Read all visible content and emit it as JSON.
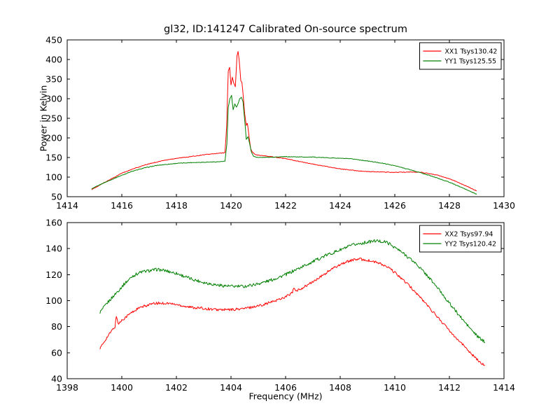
{
  "figure": {
    "title": "gl32, ID:141247 Calibrated On-source spectrum",
    "background": "#ffffff",
    "axis_color": "#000000"
  },
  "chart_data": [
    {
      "type": "line",
      "title": "gl32, ID:141247 Calibrated On-source spectrum",
      "xlabel": "",
      "ylabel": "Power in Kelvin",
      "xlim": [
        1414,
        1430
      ],
      "ylim": [
        50,
        450
      ],
      "xticks": [
        1414,
        1416,
        1418,
        1420,
        1422,
        1424,
        1426,
        1428,
        1430
      ],
      "yticks": [
        50,
        100,
        150,
        200,
        250,
        300,
        350,
        400,
        450
      ],
      "grid": false,
      "legend_position": "upper right",
      "series": [
        {
          "name": "XX1 Tsys130.42",
          "color": "#ff0000",
          "tsys": 130.42,
          "noise_k": 0.8,
          "points": [
            [
              1414.9,
              68
            ],
            [
              1415.2,
              80
            ],
            [
              1415.6,
              95
            ],
            [
              1416.0,
              110
            ],
            [
              1416.5,
              123
            ],
            [
              1417.0,
              134
            ],
            [
              1417.5,
              142
            ],
            [
              1418.0,
              148
            ],
            [
              1418.5,
              152
            ],
            [
              1419.0,
              157
            ],
            [
              1419.3,
              159
            ],
            [
              1419.6,
              161
            ],
            [
              1419.78,
              162
            ],
            [
              1419.84,
              230
            ],
            [
              1419.9,
              370
            ],
            [
              1419.95,
              380
            ],
            [
              1420.0,
              335
            ],
            [
              1420.05,
              355
            ],
            [
              1420.1,
              340
            ],
            [
              1420.16,
              330
            ],
            [
              1420.22,
              410
            ],
            [
              1420.26,
              420
            ],
            [
              1420.3,
              398
            ],
            [
              1420.36,
              345
            ],
            [
              1420.4,
              342
            ],
            [
              1420.46,
              298
            ],
            [
              1420.5,
              262
            ],
            [
              1420.56,
              232
            ],
            [
              1420.6,
              238
            ],
            [
              1420.66,
              205
            ],
            [
              1420.72,
              172
            ],
            [
              1420.8,
              162
            ],
            [
              1420.9,
              158
            ],
            [
              1421.0,
              156
            ],
            [
              1421.5,
              152
            ],
            [
              1422.0,
              147
            ],
            [
              1422.5,
              140
            ],
            [
              1423.0,
              133
            ],
            [
              1423.5,
              127
            ],
            [
              1424.0,
              121
            ],
            [
              1424.5,
              117
            ],
            [
              1425.0,
              114
            ],
            [
              1425.5,
              113
            ],
            [
              1426.0,
              112
            ],
            [
              1426.5,
              113
            ],
            [
              1427.0,
              112
            ],
            [
              1427.5,
              106
            ],
            [
              1428.0,
              96
            ],
            [
              1428.5,
              81
            ],
            [
              1429.0,
              65
            ]
          ]
        },
        {
          "name": "YY1 Tsys125.55",
          "color": "#008000",
          "tsys": 125.55,
          "noise_k": 0.8,
          "points": [
            [
              1414.9,
              70
            ],
            [
              1415.3,
              84
            ],
            [
              1415.8,
              99
            ],
            [
              1416.3,
              113
            ],
            [
              1416.8,
              123
            ],
            [
              1417.3,
              130
            ],
            [
              1418.0,
              135
            ],
            [
              1418.5,
              137
            ],
            [
              1419.0,
              138
            ],
            [
              1419.5,
              139
            ],
            [
              1419.78,
              140
            ],
            [
              1419.85,
              185
            ],
            [
              1419.9,
              278
            ],
            [
              1419.96,
              300
            ],
            [
              1420.02,
              308
            ],
            [
              1420.08,
              272
            ],
            [
              1420.14,
              286
            ],
            [
              1420.2,
              278
            ],
            [
              1420.26,
              288
            ],
            [
              1420.32,
              300
            ],
            [
              1420.38,
              304
            ],
            [
              1420.44,
              292
            ],
            [
              1420.5,
              246
            ],
            [
              1420.56,
              196
            ],
            [
              1420.62,
              204
            ],
            [
              1420.68,
              186
            ],
            [
              1420.74,
              166
            ],
            [
              1420.82,
              153
            ],
            [
              1421.0,
              150
            ],
            [
              1421.5,
              151
            ],
            [
              1422.0,
              152
            ],
            [
              1423.0,
              151
            ],
            [
              1424.0,
              148
            ],
            [
              1424.5,
              146
            ],
            [
              1425.0,
              141
            ],
            [
              1425.5,
              136
            ],
            [
              1426.0,
              129
            ],
            [
              1426.5,
              120
            ],
            [
              1427.0,
              110
            ],
            [
              1427.5,
              99
            ],
            [
              1428.0,
              87
            ],
            [
              1428.5,
              72
            ],
            [
              1429.0,
              56
            ]
          ]
        }
      ]
    },
    {
      "type": "line",
      "title": "",
      "xlabel": "Frequency (MHz)",
      "ylabel": "",
      "xlim": [
        1398,
        1414
      ],
      "ylim": [
        40,
        160
      ],
      "xticks": [
        1398,
        1400,
        1402,
        1404,
        1406,
        1408,
        1410,
        1412,
        1414
      ],
      "yticks": [
        40,
        60,
        80,
        100,
        120,
        140,
        160
      ],
      "grid": false,
      "legend_position": "upper right",
      "series": [
        {
          "name": "XX2 Tsys97.94",
          "color": "#ff0000",
          "tsys": 97.94,
          "noise_k": 1.0,
          "points": [
            [
              1399.2,
              63
            ],
            [
              1399.4,
              70
            ],
            [
              1399.6,
              76
            ],
            [
              1399.75,
              80
            ],
            [
              1399.8,
              88
            ],
            [
              1399.88,
              82
            ],
            [
              1400.0,
              85
            ],
            [
              1400.3,
              90
            ],
            [
              1400.6,
              94
            ],
            [
              1401.0,
              97
            ],
            [
              1401.3,
              98
            ],
            [
              1401.7,
              98
            ],
            [
              1402.0,
              97
            ],
            [
              1402.5,
              95
            ],
            [
              1403.0,
              94
            ],
            [
              1403.5,
              93
            ],
            [
              1404.0,
              93
            ],
            [
              1404.5,
              94
            ],
            [
              1405.0,
              96
            ],
            [
              1405.5,
              99
            ],
            [
              1406.0,
              103
            ],
            [
              1406.25,
              106
            ],
            [
              1406.3,
              110
            ],
            [
              1406.38,
              107
            ],
            [
              1406.8,
              112
            ],
            [
              1407.2,
              117
            ],
            [
              1407.6,
              123
            ],
            [
              1408.0,
              128
            ],
            [
              1408.4,
              131
            ],
            [
              1408.7,
              132
            ],
            [
              1409.0,
              131
            ],
            [
              1409.4,
              129
            ],
            [
              1409.8,
              125
            ],
            [
              1410.2,
              118
            ],
            [
              1410.6,
              110
            ],
            [
              1411.0,
              101
            ],
            [
              1411.5,
              89
            ],
            [
              1412.0,
              77
            ],
            [
              1412.5,
              66
            ],
            [
              1413.0,
              55
            ],
            [
              1413.3,
              50
            ]
          ]
        },
        {
          "name": "YY2 Tsys120.42",
          "color": "#008000",
          "tsys": 120.42,
          "noise_k": 1.2,
          "points": [
            [
              1399.2,
              91
            ],
            [
              1399.5,
              99
            ],
            [
              1399.8,
              106
            ],
            [
              1400.1,
              113
            ],
            [
              1400.4,
              119
            ],
            [
              1400.7,
              122
            ],
            [
              1401.0,
              123
            ],
            [
              1401.3,
              124
            ],
            [
              1401.6,
              123
            ],
            [
              1402.0,
              121
            ],
            [
              1402.5,
              117
            ],
            [
              1403.0,
              114
            ],
            [
              1403.5,
              112
            ],
            [
              1404.0,
              111
            ],
            [
              1404.5,
              111
            ],
            [
              1405.0,
              113
            ],
            [
              1405.5,
              116
            ],
            [
              1406.0,
              120
            ],
            [
              1406.5,
              125
            ],
            [
              1407.0,
              130
            ],
            [
              1407.5,
              135
            ],
            [
              1408.0,
              139
            ],
            [
              1408.5,
              143
            ],
            [
              1409.0,
              145
            ],
            [
              1409.3,
              146
            ],
            [
              1409.7,
              145
            ],
            [
              1410.0,
              141
            ],
            [
              1410.4,
              135
            ],
            [
              1410.8,
              128
            ],
            [
              1411.2,
              119
            ],
            [
              1411.6,
              109
            ],
            [
              1412.0,
              98
            ],
            [
              1412.5,
              85
            ],
            [
              1413.0,
              73
            ],
            [
              1413.3,
              68
            ]
          ]
        }
      ]
    }
  ]
}
